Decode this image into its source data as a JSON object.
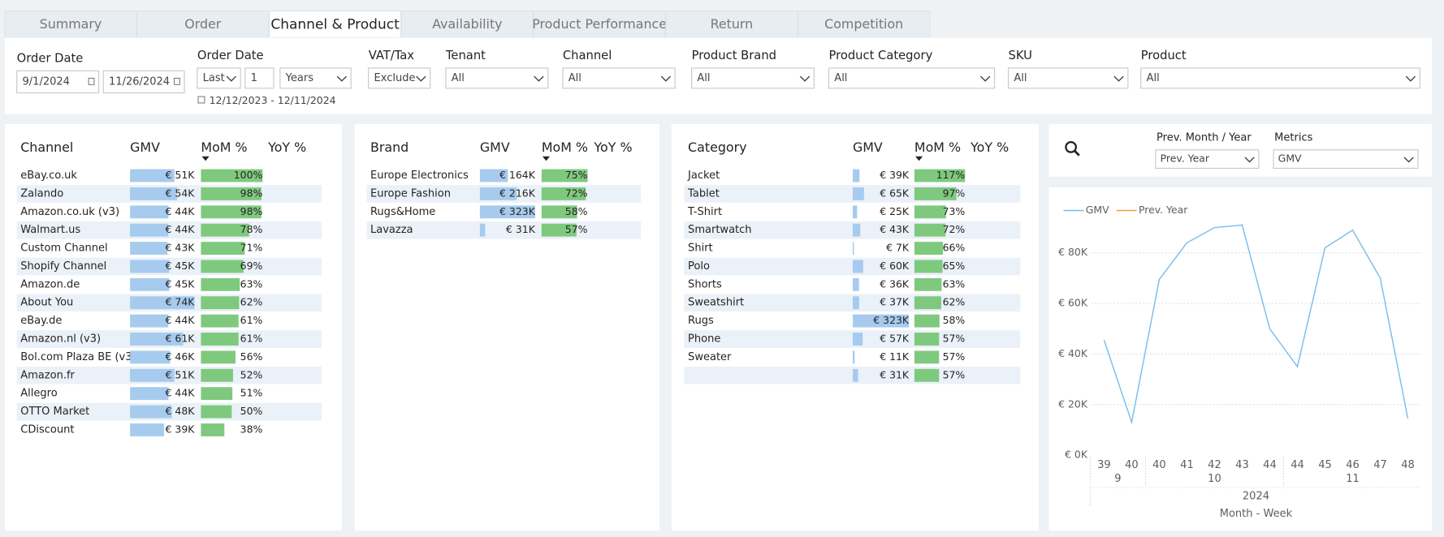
{
  "tabs": [
    "Summary",
    "Order",
    "Channel & Product",
    "Availability",
    "Product Performance",
    "Return",
    "Competition"
  ],
  "active_tab": 2,
  "filters": [
    {
      "label": "Order Date",
      "values": [
        "9/1/2024",
        "11/26/2024"
      ]
    },
    {
      "label": "Order Date",
      "values": [
        "Last",
        "1",
        "Years"
      ],
      "note": "12/12/2023 - 12/11/2024"
    },
    {
      "label": "VAT/Tax",
      "values": [
        "Exclude"
      ]
    },
    {
      "label": "Tenant",
      "values": [
        "All"
      ]
    },
    {
      "label": "Channel",
      "values": [
        "All"
      ]
    },
    {
      "label": "Product Brand",
      "values": [
        "All"
      ]
    },
    {
      "label": "Product Category",
      "values": [
        "All"
      ]
    },
    {
      "label": "SKU",
      "values": [
        "All"
      ]
    },
    {
      "label": "Product",
      "values": [
        "All"
      ]
    }
  ],
  "tables": [
    {
      "headers": [
        "Channel",
        "GMV",
        "MoM %",
        "YoY %"
      ],
      "rows": [
        {
          "name": "eBay.co.uk",
          "gmv": 51,
          "gmv_label": "€ 51K",
          "mom": 100,
          "mom_label": "100%"
        },
        {
          "name": "Zalando",
          "gmv": 54,
          "gmv_label": "€ 54K",
          "mom": 98,
          "mom_label": "98%"
        },
        {
          "name": "Amazon.co.uk (v3)",
          "gmv": 44,
          "gmv_label": "€ 44K",
          "mom": 98,
          "mom_label": "98%"
        },
        {
          "name": "Walmart.us",
          "gmv": 44,
          "gmv_label": "€ 44K",
          "mom": 78,
          "mom_label": "78%"
        },
        {
          "name": "Custom Channel",
          "gmv": 43,
          "gmv_label": "€ 43K",
          "mom": 71,
          "mom_label": "71%"
        },
        {
          "name": "Shopify Channel",
          "gmv": 45,
          "gmv_label": "€ 45K",
          "mom": 69,
          "mom_label": "69%"
        },
        {
          "name": "Amazon.de",
          "gmv": 45,
          "gmv_label": "€ 45K",
          "mom": 63,
          "mom_label": "63%"
        },
        {
          "name": "About You",
          "gmv": 74,
          "gmv_label": "€ 74K",
          "mom": 62,
          "mom_label": "62%"
        },
        {
          "name": "eBay.de",
          "gmv": 44,
          "gmv_label": "€ 44K",
          "mom": 61,
          "mom_label": "61%"
        },
        {
          "name": "Amazon.nl (v3)",
          "gmv": 61,
          "gmv_label": "€ 61K",
          "mom": 61,
          "mom_label": "61%"
        },
        {
          "name": "Bol.com Plaza BE (v3)",
          "gmv": 46,
          "gmv_label": "€ 46K",
          "mom": 56,
          "mom_label": "56%"
        },
        {
          "name": "Amazon.fr",
          "gmv": 51,
          "gmv_label": "€ 51K",
          "mom": 52,
          "mom_label": "52%"
        },
        {
          "name": "Allegro",
          "gmv": 44,
          "gmv_label": "€ 44K",
          "mom": 51,
          "mom_label": "51%"
        },
        {
          "name": "OTTO Market",
          "gmv": 48,
          "gmv_label": "€ 48K",
          "mom": 50,
          "mom_label": "50%"
        },
        {
          "name": "CDiscount",
          "gmv": 39,
          "gmv_label": "€ 39K",
          "mom": 38,
          "mom_label": "38%"
        }
      ]
    },
    {
      "headers": [
        "Brand",
        "GMV",
        "MoM %",
        "YoY %"
      ],
      "rows": [
        {
          "name": "Europe Electronics",
          "gmv": 164,
          "gmv_label": "€ 164K",
          "mom": 75,
          "mom_label": "75%"
        },
        {
          "name": "Europe Fashion",
          "gmv": 216,
          "gmv_label": "€ 216K",
          "mom": 72,
          "mom_label": "72%"
        },
        {
          "name": "Rugs&Home",
          "gmv": 323,
          "gmv_label": "€ 323K",
          "mom": 58,
          "mom_label": "58%"
        },
        {
          "name": "Lavazza",
          "gmv": 31,
          "gmv_label": "€ 31K",
          "mom": 57,
          "mom_label": "57%"
        }
      ]
    },
    {
      "headers": [
        "Category",
        "GMV",
        "MoM %",
        "YoY %"
      ],
      "rows": [
        {
          "name": "Jacket",
          "gmv": 39,
          "gmv_label": "€ 39K",
          "mom": 117,
          "mom_label": "117%"
        },
        {
          "name": "Tablet",
          "gmv": 65,
          "gmv_label": "€ 65K",
          "mom": 97,
          "mom_label": "97%"
        },
        {
          "name": "T-Shirt",
          "gmv": 25,
          "gmv_label": "€ 25K",
          "mom": 73,
          "mom_label": "73%"
        },
        {
          "name": "Smartwatch",
          "gmv": 43,
          "gmv_label": "€ 43K",
          "mom": 72,
          "mom_label": "72%"
        },
        {
          "name": "Shirt",
          "gmv": 7,
          "gmv_label": "€ 7K",
          "mom": 66,
          "mom_label": "66%"
        },
        {
          "name": "Polo",
          "gmv": 60,
          "gmv_label": "€ 60K",
          "mom": 65,
          "mom_label": "65%"
        },
        {
          "name": "Shorts",
          "gmv": 36,
          "gmv_label": "€ 36K",
          "mom": 63,
          "mom_label": "63%"
        },
        {
          "name": "Sweatshirt",
          "gmv": 37,
          "gmv_label": "€ 37K",
          "mom": 62,
          "mom_label": "62%"
        },
        {
          "name": "Rugs",
          "gmv": 323,
          "gmv_label": "€ 323K",
          "mom": 58,
          "mom_label": "58%"
        },
        {
          "name": "Phone",
          "gmv": 57,
          "gmv_label": "€ 57K",
          "mom": 57,
          "mom_label": "57%"
        },
        {
          "name": "Sweater",
          "gmv": 11,
          "gmv_label": "€ 11K",
          "mom": 57,
          "mom_label": "57%"
        },
        {
          "name": null,
          "gmv": 31,
          "gmv_label": "€ 31K",
          "mom": 57,
          "mom_label": "57%"
        }
      ]
    }
  ],
  "chart_filters": [
    {
      "label": "Prev. Month / Year",
      "value": "Prev. Year"
    },
    {
      "label": "Metrics",
      "value": "GMV"
    }
  ],
  "chart_data": {
    "type": "line",
    "categories": [
      "39",
      "40",
      "40",
      "41",
      "42",
      "43",
      "44",
      "44",
      "45",
      "46",
      "47",
      "48"
    ],
    "months": [
      "9",
      "10",
      "11"
    ],
    "month_spans": [
      2,
      5,
      5
    ],
    "year": "2024",
    "xlabel": "Month - Week",
    "series": [
      {
        "name": "GMV",
        "color": "#7cc0ec",
        "values": [
          45.5,
          13,
          69.5,
          84,
          90,
          91,
          50,
          35,
          82,
          89,
          70,
          14.5
        ]
      },
      {
        "name": "Prev. Year",
        "color": "#f0a050",
        "values": [
          null,
          null,
          null,
          null,
          null,
          null,
          null,
          null,
          null,
          null,
          null,
          null
        ]
      }
    ],
    "ylim": [
      0,
      92
    ],
    "yticks": [
      {
        "value": 0,
        "label": "€ 0K"
      },
      {
        "value": 20,
        "label": "€ 20K"
      },
      {
        "value": 40,
        "label": "€ 40K"
      },
      {
        "value": 60,
        "label": "€ 60K"
      },
      {
        "value": 80,
        "label": "€ 80K"
      }
    ],
    "grid": true,
    "legend": "top-left"
  }
}
